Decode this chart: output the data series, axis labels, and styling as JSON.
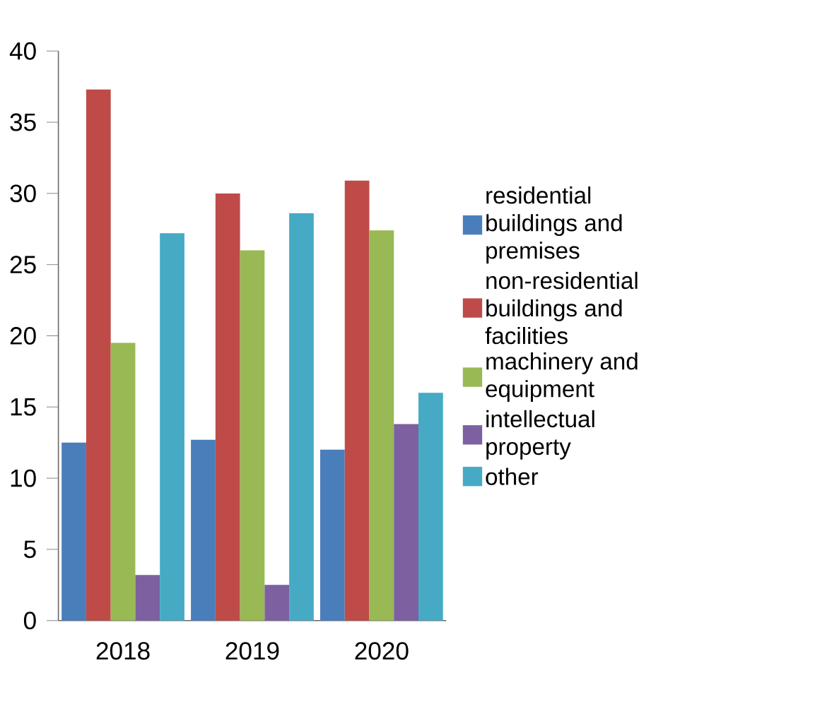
{
  "chart_data": {
    "type": "bar",
    "categories": [
      "2018",
      "2019",
      "2020"
    ],
    "series": [
      {
        "name": "residential buildings and premises",
        "color": "#4a7ebb",
        "values": [
          12.5,
          12.7,
          12.0
        ]
      },
      {
        "name": "non-residential buildings and facilities",
        "color": "#be4b48",
        "values": [
          37.3,
          30.0,
          30.9
        ]
      },
      {
        "name": "machinery and equipment",
        "color": "#98b954",
        "values": [
          19.5,
          26.0,
          27.4
        ]
      },
      {
        "name": "intellectual property",
        "color": "#7d60a0",
        "values": [
          3.2,
          2.5,
          13.8
        ]
      },
      {
        "name": "other",
        "color": "#46aac5",
        "values": [
          27.2,
          28.6,
          16.0
        ]
      }
    ],
    "ylim": [
      0,
      40
    ],
    "yticks": [
      0,
      5,
      10,
      15,
      20,
      25,
      30,
      35,
      40
    ],
    "grid": false,
    "legend": "right"
  }
}
